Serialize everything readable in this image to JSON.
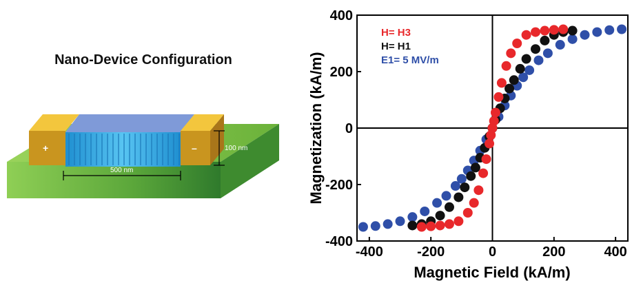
{
  "device": {
    "title": "Nano-Device Configuration",
    "width_label": "500 nm",
    "height_label": "100 nm",
    "plus_sign": "+",
    "minus_sign": "–",
    "colors": {
      "substrate": "#7cc243",
      "electrode": "#e7b52b",
      "nanowires": "#2aa6e0"
    }
  },
  "chart_data": {
    "type": "scatter",
    "title": "",
    "xlabel": "Magnetic Field (kA/m)",
    "ylabel": "Magnetization (kA/m)",
    "xlim": [
      -440,
      440
    ],
    "ylim": [
      -400,
      400
    ],
    "xticks": [
      -400,
      -200,
      0,
      200,
      400
    ],
    "yticks": [
      -400,
      -200,
      0,
      200,
      400
    ],
    "zero_lines": true,
    "legend_position": "top-left",
    "series": [
      {
        "name": "E1= 5 MV/m",
        "color": "#2f4fa8",
        "x": [
          -420,
          -380,
          -340,
          -300,
          -260,
          -220,
          -180,
          -150,
          -120,
          -100,
          -80,
          -60,
          -40,
          -20,
          0,
          20,
          40,
          60,
          80,
          100,
          120,
          150,
          180,
          220,
          260,
          300,
          340,
          380,
          420
        ],
        "y": [
          -350,
          -347,
          -340,
          -330,
          -315,
          -295,
          -265,
          -240,
          -205,
          -180,
          -150,
          -115,
          -80,
          -40,
          0,
          40,
          80,
          115,
          150,
          180,
          205,
          240,
          265,
          295,
          315,
          330,
          340,
          347,
          350
        ]
      },
      {
        "name": "H= H1",
        "color": "#111111",
        "x": [
          -260,
          -230,
          -200,
          -170,
          -140,
          -110,
          -90,
          -70,
          -55,
          -40,
          -25,
          -10,
          0,
          10,
          25,
          40,
          55,
          70,
          90,
          110,
          140,
          170,
          200,
          230,
          260
        ],
        "y": [
          -345,
          -340,
          -330,
          -310,
          -280,
          -245,
          -210,
          -170,
          -140,
          -105,
          -70,
          -30,
          0,
          30,
          70,
          105,
          140,
          170,
          210,
          245,
          280,
          310,
          330,
          340,
          345
        ]
      },
      {
        "name": "H= H3",
        "color": "#e8282b",
        "x": [
          -230,
          -200,
          -170,
          -140,
          -110,
          -80,
          -60,
          -45,
          -30,
          -20,
          -10,
          -5,
          0,
          5,
          10,
          20,
          30,
          45,
          60,
          80,
          110,
          140,
          170,
          200,
          230
        ],
        "y": [
          -350,
          -348,
          -345,
          -340,
          -330,
          -300,
          -265,
          -220,
          -160,
          -110,
          -55,
          -25,
          0,
          25,
          55,
          110,
          160,
          220,
          265,
          300,
          330,
          340,
          345,
          348,
          350
        ]
      }
    ],
    "legend_order": [
      "H= H3",
      "H= H1",
      "E1= 5 MV/m"
    ]
  }
}
